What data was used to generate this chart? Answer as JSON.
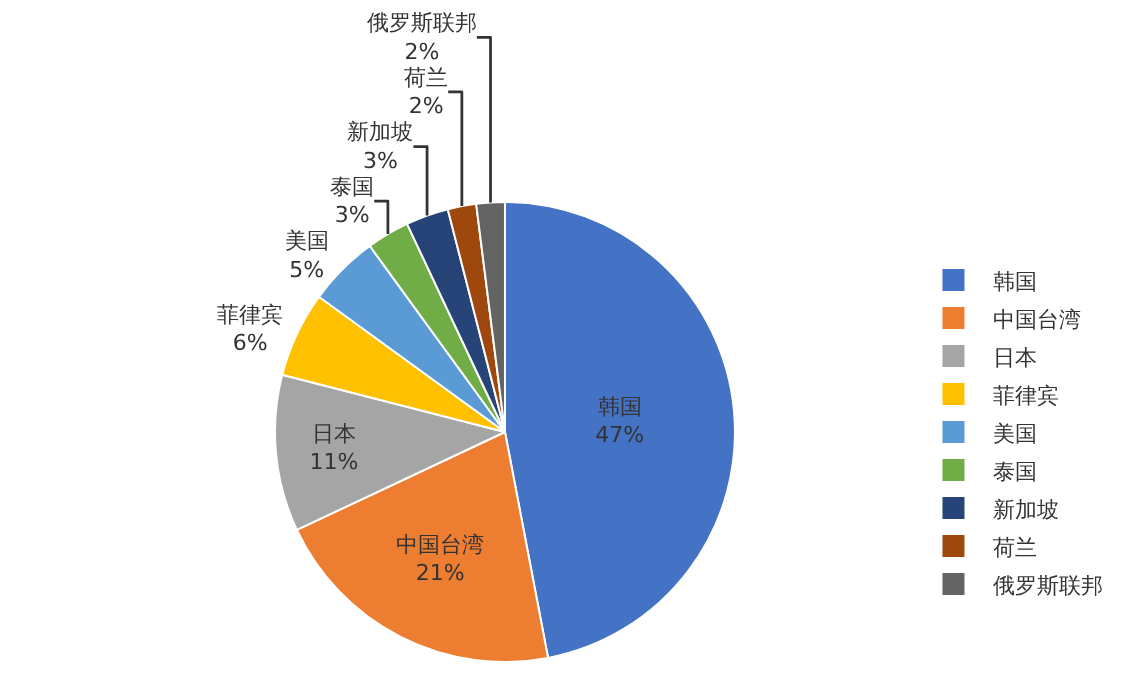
{
  "chart_data": {
    "type": "pie",
    "categories": [
      "韩国",
      "中国台湾",
      "日本",
      "菲律宾",
      "美国",
      "泰国",
      "新加坡",
      "荷兰",
      "俄罗斯联邦"
    ],
    "values": [
      47,
      21,
      11,
      6,
      5,
      3,
      3,
      2,
      2
    ],
    "value_labels": [
      "47%",
      "21%",
      "11%",
      "6%",
      "5%",
      "3%",
      "3%",
      "2%",
      "2%"
    ],
    "colors": [
      "#4472c4",
      "#ed7d31",
      "#a5a5a5",
      "#ffc000",
      "#5b9bd5",
      "#70ad47",
      "#264478",
      "#9e480e",
      "#636363"
    ],
    "legend": "right"
  }
}
